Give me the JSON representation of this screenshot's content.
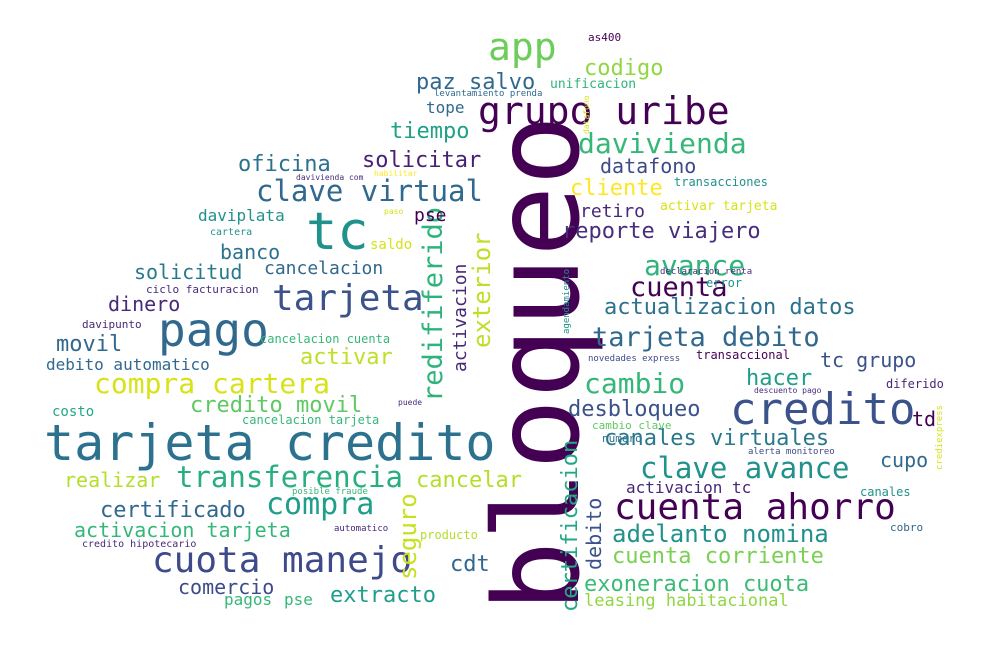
{
  "palette": {
    "purple": "#440154",
    "indigo": "#3b528b",
    "blue": "#31688e",
    "teal": "#21918c",
    "green": "#35b779",
    "lime": "#90d743",
    "yellow": "#d8e219",
    "bg": "#ffffff"
  },
  "words": [
    {
      "id": "bloqueo",
      "text": "bloqueo",
      "color": "#440154"
    },
    {
      "id": "tarjeta-credito",
      "text": "tarjeta credito",
      "color": "#2c728e"
    },
    {
      "id": "credito",
      "text": "credito",
      "color": "#3b528b"
    },
    {
      "id": "pago",
      "text": "pago",
      "color": "#31688e"
    },
    {
      "id": "tc",
      "text": "tc",
      "color": "#21918c"
    },
    {
      "id": "app",
      "text": "app",
      "color": "#6ccd5a"
    },
    {
      "id": "grupo-uribe",
      "text": "grupo uribe",
      "color": "#440154"
    },
    {
      "id": "tarjeta",
      "text": "tarjeta",
      "color": "#3b528b"
    },
    {
      "id": "cuota-manejo",
      "text": "cuota manejo",
      "color": "#3e4a89"
    },
    {
      "id": "cuenta-ahorro",
      "text": "cuenta ahorro",
      "color": "#440154"
    },
    {
      "id": "transferencia",
      "text": "transferencia",
      "color": "#29af7f"
    },
    {
      "id": "compra",
      "text": "compra",
      "color": "#1f9e89"
    },
    {
      "id": "clave-virtual",
      "text": "clave virtual",
      "color": "#31688e"
    },
    {
      "id": "davivienda",
      "text": "davivienda",
      "color": "#35b779"
    },
    {
      "id": "clave-avance",
      "text": "clave avance",
      "color": "#21918c"
    },
    {
      "id": "redififerido",
      "text": "redififerido",
      "color": "#2eb37c"
    },
    {
      "id": "compra-cartera",
      "text": "compra cartera",
      "color": "#d8e219"
    },
    {
      "id": "cambio",
      "text": "cambio",
      "color": "#35b779"
    },
    {
      "id": "avance",
      "text": "avance",
      "color": "#2fb47c"
    },
    {
      "id": "cuenta",
      "text": "cuenta",
      "color": "#440154"
    },
    {
      "id": "tarjeta-debito",
      "text": "tarjeta debito",
      "color": "#31688e"
    },
    {
      "id": "exterior",
      "text": "exterior",
      "color": "#bddf26"
    },
    {
      "id": "adelanto-nomina",
      "text": "adelanto nomina",
      "color": "#21918c"
    },
    {
      "id": "canales-virtuales",
      "text": "canales virtuales",
      "color": "#2a788e"
    },
    {
      "id": "cuenta-corriente",
      "text": "cuenta corriente",
      "color": "#7ad151"
    },
    {
      "id": "exoneracion-cuota",
      "text": "exoneracion cuota",
      "color": "#3bbb75"
    },
    {
      "id": "certificado",
      "text": "certificado",
      "color": "#31688e"
    },
    {
      "id": "cancelar",
      "text": "cancelar",
      "color": "#b5de2b"
    },
    {
      "id": "seguro",
      "text": "seguro",
      "color": "#c8e020"
    },
    {
      "id": "solicitar",
      "text": "solicitar",
      "color": "#482173"
    },
    {
      "id": "credito-movil",
      "text": "credito movil",
      "color": "#5ec962"
    },
    {
      "id": "actualizacion-datos",
      "text": "actualizacion datos",
      "color": "#2c728e"
    },
    {
      "id": "reporte-viajero",
      "text": "reporte viajero",
      "color": "#472d7b"
    },
    {
      "id": "desbloqueo",
      "text": "desbloqueo",
      "color": "#3b528b"
    },
    {
      "id": "hacer",
      "text": "hacer",
      "color": "#1f9e89"
    },
    {
      "id": "certificacion",
      "text": "certificacion",
      "color": "#22a884"
    },
    {
      "id": "debito",
      "text": "debito",
      "color": "#3b528b"
    },
    {
      "id": "activacion",
      "text": "activacion",
      "color": "#482878"
    },
    {
      "id": "codigo",
      "text": "codigo",
      "color": "#90d743"
    },
    {
      "id": "paz-salvo",
      "text": "paz salvo",
      "color": "#31688e"
    },
    {
      "id": "tiempo",
      "text": "tiempo",
      "color": "#1fa188"
    },
    {
      "id": "cliente",
      "text": "cliente",
      "color": "#fde725"
    },
    {
      "id": "datafono",
      "text": "datafono",
      "color": "#3e4a89"
    },
    {
      "id": "oficina",
      "text": "oficina",
      "color": "#2c728e"
    },
    {
      "id": "activar",
      "text": "activar",
      "color": "#bddf26"
    },
    {
      "id": "movil",
      "text": "movil",
      "color": "#31688e"
    },
    {
      "id": "extracto",
      "text": "extracto",
      "color": "#1f9e89"
    },
    {
      "id": "cdt",
      "text": "cdt",
      "color": "#31688e"
    },
    {
      "id": "activacion-tarjeta",
      "text": "activacion tarjeta",
      "color": "#35b779"
    },
    {
      "id": "comercio",
      "text": "comercio",
      "color": "#3e4a89"
    },
    {
      "id": "realizar",
      "text": "realizar",
      "color": "#b5de2b"
    },
    {
      "id": "dinero",
      "text": "dinero",
      "color": "#482878"
    },
    {
      "id": "solicitud",
      "text": "solicitud",
      "color": "#2a788e"
    },
    {
      "id": "banco",
      "text": "banco",
      "color": "#2c728e"
    },
    {
      "id": "cancelacion",
      "text": "cancelacion",
      "color": "#31688e"
    },
    {
      "id": "tc-grupo",
      "text": "tc grupo",
      "color": "#3b528b"
    },
    {
      "id": "td",
      "text": "td",
      "color": "#440154"
    },
    {
      "id": "cupo",
      "text": "cupo",
      "color": "#31688e"
    },
    {
      "id": "leasing-habitacional",
      "text": "leasing habitacional",
      "color": "#90d743"
    },
    {
      "id": "activacion-tc",
      "text": "activacion tc",
      "color": "#482878"
    },
    {
      "id": "retiro",
      "text": "retiro",
      "color": "#482878"
    },
    {
      "id": "pse-1",
      "text": "pse",
      "color": "#440154"
    },
    {
      "id": "pse-2",
      "text": "pse",
      "color": "#35b779"
    },
    {
      "id": "pagos",
      "text": "pagos",
      "color": "#35b779"
    },
    {
      "id": "tope",
      "text": "tope",
      "color": "#31688e"
    },
    {
      "id": "saldo",
      "text": "saldo",
      "color": "#d8e219"
    },
    {
      "id": "daviplata",
      "text": "daviplata",
      "color": "#21918c"
    },
    {
      "id": "debito-automatico",
      "text": "debito automatico",
      "color": "#31688e"
    },
    {
      "id": "costo",
      "text": "costo",
      "color": "#22a884"
    },
    {
      "id": "as400",
      "text": "as400",
      "color": "#440154"
    },
    {
      "id": "unificacion",
      "text": "unificacion",
      "color": "#2fb47c"
    },
    {
      "id": "levantamiento-prenda",
      "text": "levantamiento prenda",
      "color": "#31688e"
    },
    {
      "id": "transacciones",
      "text": "transacciones",
      "color": "#21918c"
    },
    {
      "id": "activar-tarjeta",
      "text": "activar tarjeta",
      "color": "#d8e219"
    },
    {
      "id": "davivienda-com",
      "text": "davivienda com",
      "color": "#472d7b"
    },
    {
      "id": "habilitar",
      "text": "habilitar",
      "color": "#fde725"
    },
    {
      "id": "paso",
      "text": "paso",
      "color": "#d8e219"
    },
    {
      "id": "cartera",
      "text": "cartera",
      "color": "#21918c"
    },
    {
      "id": "ciclo-facturacion",
      "text": "ciclo facturacion",
      "color": "#472d7b"
    },
    {
      "id": "declaracion-renta",
      "text": "declaracion renta",
      "color": "#472d7b"
    },
    {
      "id": "error",
      "text": "error",
      "color": "#21918c"
    },
    {
      "id": "davipunto",
      "text": "davipunto",
      "color": "#482878"
    },
    {
      "id": "cancelacion-cuenta",
      "text": "cancelacion cuenta",
      "color": "#35b779"
    },
    {
      "id": "novedades-express",
      "text": "novedades express",
      "color": "#3e4a89"
    },
    {
      "id": "transaccional",
      "text": "transaccional",
      "color": "#440154"
    },
    {
      "id": "descuento-pago",
      "text": "descuento pago",
      "color": "#472d7b"
    },
    {
      "id": "diferido",
      "text": "diferido",
      "color": "#482878"
    },
    {
      "id": "puede",
      "text": "puede",
      "color": "#482878"
    },
    {
      "id": "cancelacion-tarjeta",
      "text": "cancelacion tarjeta",
      "color": "#35b779"
    },
    {
      "id": "cambio-clave",
      "text": "cambio clave",
      "color": "#5ec962"
    },
    {
      "id": "numero",
      "text": "numero",
      "color": "#2c728e"
    },
    {
      "id": "alerta-monitoreo",
      "text": "alerta monitoreo",
      "color": "#3e4a89"
    },
    {
      "id": "posible-fraude",
      "text": "posible fraude",
      "color": "#35b779"
    },
    {
      "id": "canales",
      "text": "canales",
      "color": "#21918c"
    },
    {
      "id": "automatico",
      "text": "automatico",
      "color": "#482878"
    },
    {
      "id": "producto",
      "text": "producto",
      "color": "#b5de2b"
    },
    {
      "id": "cobro",
      "text": "cobro",
      "color": "#31688e"
    },
    {
      "id": "credito-hipotecario",
      "text": "credito hipotecario",
      "color": "#482878"
    },
    {
      "id": "agendamiento",
      "text": "agendamiento",
      "color": "#21918c"
    },
    {
      "id": "datafono-v",
      "text": "datafono",
      "color": "#d8e219"
    },
    {
      "id": "crediexpress",
      "text": "crediexpress",
      "color": "#d8e219"
    }
  ]
}
